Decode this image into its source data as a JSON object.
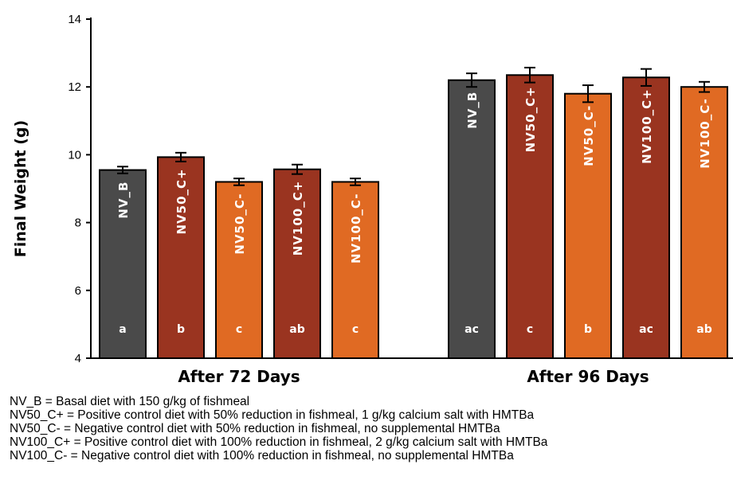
{
  "chart_data": {
    "type": "bar",
    "ylabel": "Final Weight (g)",
    "ylim": [
      4,
      14
    ],
    "yticks": [
      4,
      6,
      8,
      10,
      12,
      14
    ],
    "groups": [
      {
        "label": "After 72 Days",
        "bars": [
          {
            "name": "NV_B",
            "value": 9.55,
            "error": 0.1,
            "letter": "a",
            "color": "#4a4a4a"
          },
          {
            "name": "NV50_C+",
            "value": 9.93,
            "error": 0.13,
            "letter": "b",
            "color": "#9a3420"
          },
          {
            "name": "NV50_C-",
            "value": 9.2,
            "error": 0.1,
            "letter": "c",
            "color": "#e06a23"
          },
          {
            "name": "NV100_C+",
            "value": 9.57,
            "error": 0.14,
            "letter": "ab",
            "color": "#9a3420"
          },
          {
            "name": "NV100_C-",
            "value": 9.2,
            "error": 0.1,
            "letter": "c",
            "color": "#e06a23"
          }
        ]
      },
      {
        "label": "After 96 Days",
        "bars": [
          {
            "name": "NV_B",
            "value": 12.2,
            "error": 0.2,
            "letter": "ac",
            "color": "#4a4a4a"
          },
          {
            "name": "NV50_C+",
            "value": 12.35,
            "error": 0.22,
            "letter": "c",
            "color": "#9a3420"
          },
          {
            "name": "NV50_C-",
            "value": 11.8,
            "error": 0.25,
            "letter": "b",
            "color": "#e06a23"
          },
          {
            "name": "NV100_C+",
            "value": 12.28,
            "error": 0.25,
            "letter": "ac",
            "color": "#9a3420"
          },
          {
            "name": "NV100_C-",
            "value": 12.0,
            "error": 0.15,
            "letter": "ab",
            "color": "#e06a23"
          }
        ]
      }
    ]
  },
  "legend": [
    "NV_B = Basal diet with 150 g/kg of fishmeal",
    "NV50_C+ = Positive control diet with 50% reduction in fishmeal, 1 g/kg calcium salt with HMTBa",
    "NV50_C- = Negative control diet with 50% reduction in fishmeal, no supplemental HMTBa",
    "NV100_C+ = Positive control diet with 100% reduction in fishmeal, 2 g/kg calcium salt with HMTBa",
    "NV100_C- = Negative control diet with 100% reduction in fishmeal, no supplemental HMTBa"
  ]
}
